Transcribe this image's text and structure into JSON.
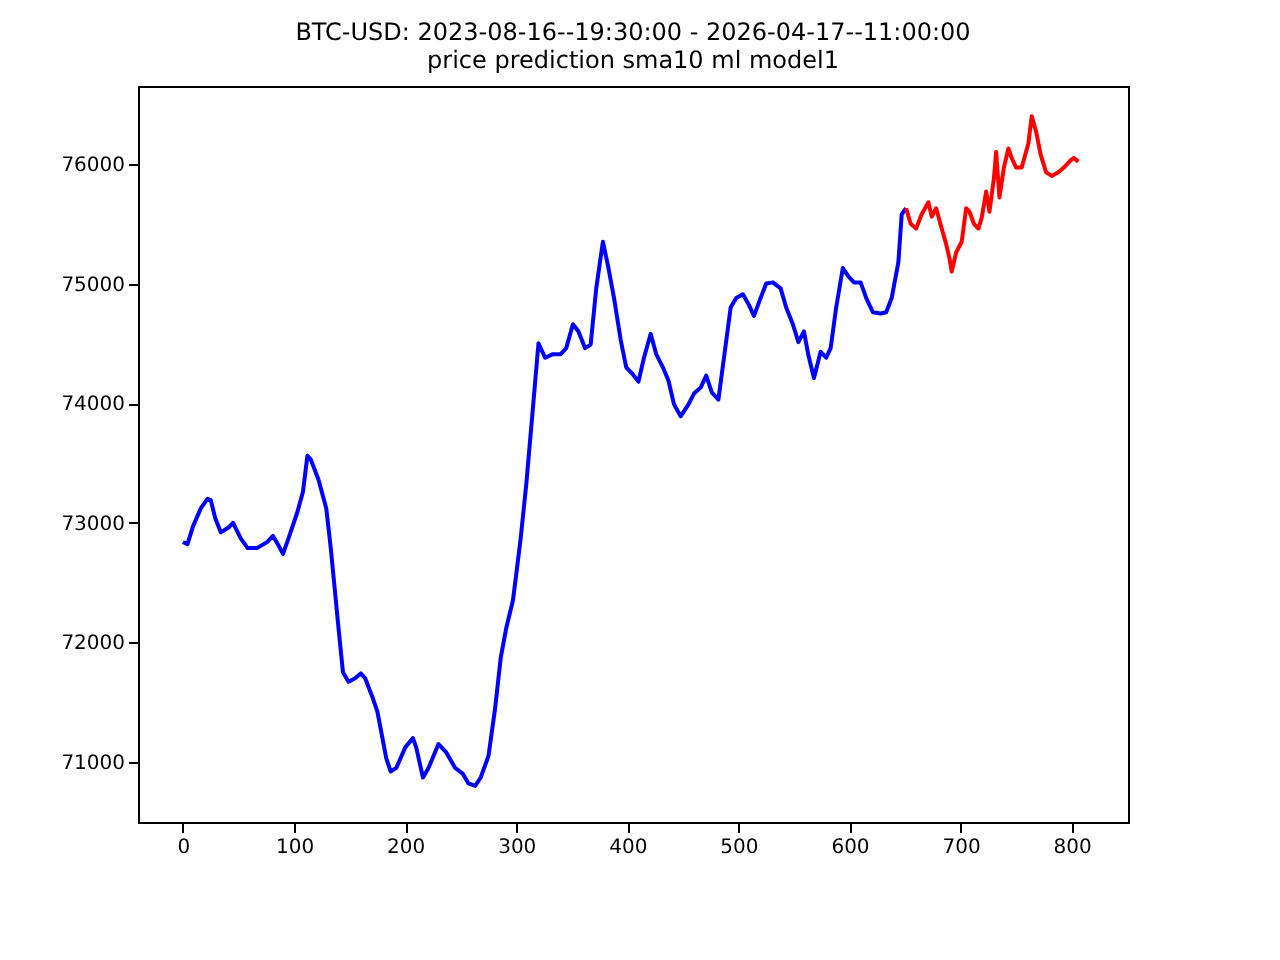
{
  "chart_data": {
    "type": "line",
    "title": "BTC-USD: 2023-08-16--19:30:00 - 2026-04-17--11:00:00",
    "subtitle": "price prediction sma10 ml model1",
    "xlim": [
      -40.5,
      850.7
    ],
    "xticks": [
      0,
      100,
      200,
      300,
      400,
      500,
      600,
      700,
      800
    ],
    "ylim": [
      70498,
      76652
    ],
    "yticks": [
      71000,
      72000,
      73000,
      74000,
      75000,
      76000
    ],
    "grid": false,
    "series": [
      {
        "color": "#0000ff",
        "x": [
          0,
          4,
          9,
          16,
          22,
          25,
          29,
          34,
          41,
          45,
          52,
          58,
          67,
          76,
          81,
          86,
          90,
          95,
          103,
          108,
          112,
          115,
          122,
          129,
          133,
          140,
          144,
          149,
          155,
          160,
          164,
          171,
          175,
          183,
          187,
          192,
          200,
          207,
          210,
          216,
          221,
          230,
          237,
          245,
          252,
          257,
          263,
          268,
          275,
          281,
          286,
          291,
          297,
          300,
          304,
          309,
          315,
          320,
          326,
          333,
          340,
          345,
          351,
          356,
          362,
          367,
          372,
          378,
          383,
          388,
          394,
          399,
          405,
          410,
          415,
          421,
          426,
          432,
          437,
          442,
          448,
          455,
          460,
          466,
          471,
          476,
          482,
          487,
          493,
          498,
          504,
          509,
          514,
          520,
          525,
          531,
          538,
          543,
          549,
          554,
          559,
          563,
          568,
          574,
          579,
          583,
          588,
          594,
          599,
          604,
          610,
          615,
          621,
          628,
          633,
          638,
          644,
          647,
          651
        ],
        "values": [
          72840,
          72820,
          72970,
          73120,
          73200,
          73190,
          73040,
          72920,
          72960,
          73000,
          72870,
          72790,
          72790,
          72840,
          72890,
          72810,
          72740,
          72870,
          73090,
          73260,
          73560,
          73530,
          73360,
          73120,
          72790,
          72120,
          71750,
          71670,
          71700,
          71740,
          71700,
          71530,
          71420,
          71030,
          70920,
          70950,
          71120,
          71200,
          71120,
          70870,
          70950,
          71150,
          71080,
          70950,
          70900,
          70820,
          70800,
          70870,
          71050,
          71450,
          71870,
          72120,
          72350,
          72570,
          72870,
          73320,
          73960,
          74500,
          74380,
          74410,
          74410,
          74460,
          74660,
          74600,
          74460,
          74490,
          74960,
          75350,
          75130,
          74880,
          74530,
          74300,
          74240,
          74180,
          74380,
          74580,
          74410,
          74300,
          74190,
          73990,
          73890,
          73990,
          74080,
          74130,
          74230,
          74090,
          74030,
          74380,
          74800,
          74880,
          74910,
          74830,
          74730,
          74880,
          75000,
          75010,
          74960,
          74800,
          74660,
          74510,
          74600,
          74400,
          74210,
          74430,
          74380,
          74460,
          74800,
          75130,
          75060,
          75010,
          75010,
          74880,
          74760,
          74750,
          74760,
          74880,
          75180,
          75580,
          75630
        ]
      },
      {
        "color": "#ff0000",
        "x": [
          651,
          655,
          660,
          665,
          671,
          674,
          678,
          683,
          687,
          690,
          692,
          696,
          701,
          705,
          708,
          712,
          716,
          719,
          723,
          726,
          730,
          732,
          735,
          739,
          743,
          746,
          750,
          755,
          761,
          764,
          768,
          772,
          777,
          782,
          788,
          793,
          799,
          802,
          806
        ],
        "values": [
          75630,
          75500,
          75460,
          75580,
          75680,
          75560,
          75630,
          75460,
          75330,
          75210,
          75100,
          75260,
          75350,
          75630,
          75600,
          75500,
          75460,
          75550,
          75770,
          75600,
          75880,
          76100,
          75720,
          75970,
          76130,
          76050,
          75970,
          75970,
          76170,
          76400,
          76270,
          76080,
          75930,
          75900,
          75930,
          75970,
          76030,
          76050,
          76020
        ]
      }
    ]
  }
}
